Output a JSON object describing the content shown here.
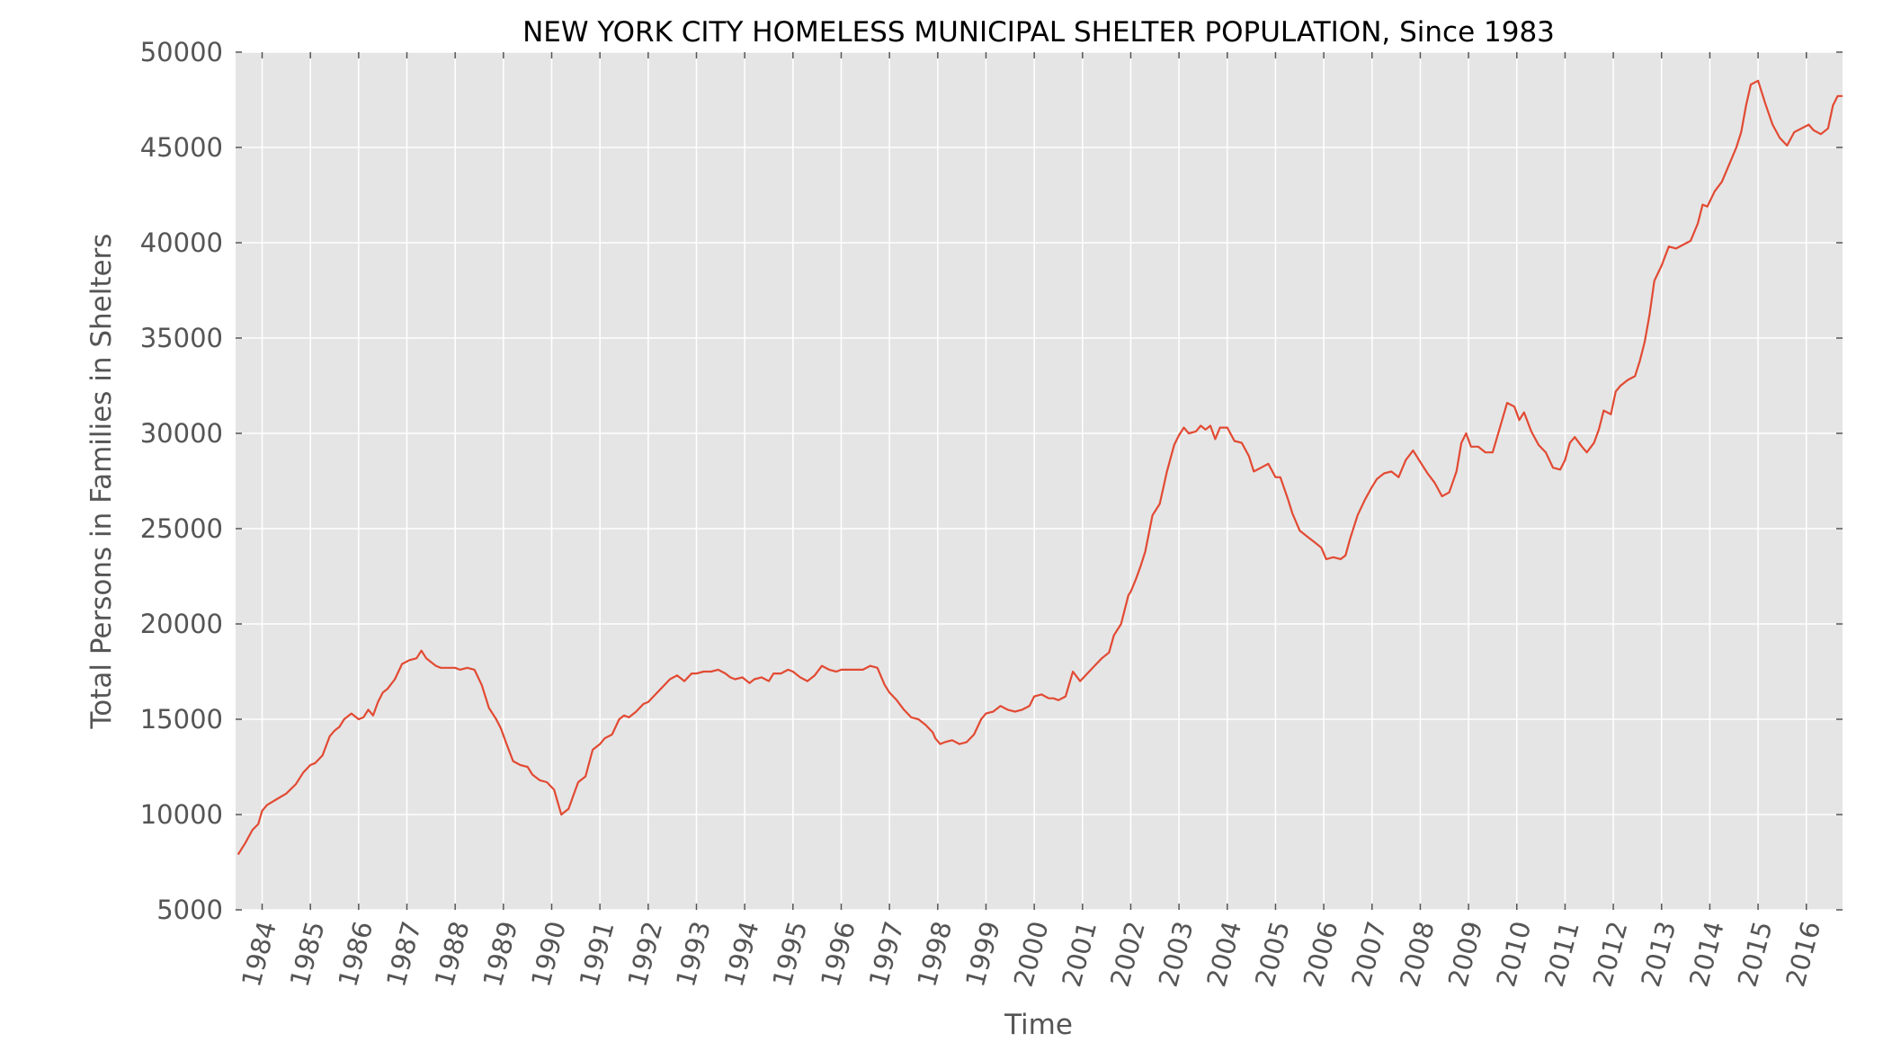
{
  "chart_data": {
    "type": "line",
    "title": "NEW YORK CITY HOMELESS MUNICIPAL SHELTER POPULATION, Since 1983",
    "xlabel": "Time",
    "ylabel": "Total Persons in Families in Shelters",
    "xlim": [
      1983.45,
      2016.75
    ],
    "ylim": [
      5000,
      50000
    ],
    "yticks": [
      "5000",
      "10000",
      "15000",
      "20000",
      "25000",
      "30000",
      "35000",
      "40000",
      "45000",
      "50000"
    ],
    "xticks": [
      "1984",
      "1985",
      "1986",
      "1987",
      "1988",
      "1989",
      "1990",
      "1991",
      "1992",
      "1993",
      "1994",
      "1995",
      "1996",
      "1997",
      "1998",
      "1999",
      "2000",
      "2001",
      "2002",
      "2003",
      "2004",
      "2005",
      "2006",
      "2007",
      "2008",
      "2009",
      "2010",
      "2011",
      "2012",
      "2013",
      "2014",
      "2015",
      "2016"
    ],
    "grid": true,
    "background": "#e5e5e5",
    "line_color": "#e24a33",
    "series": [
      {
        "x": [
          1983.5,
          1983.65,
          1983.8,
          1983.92,
          1984.0,
          1984.1,
          1984.3,
          1984.5,
          1984.7,
          1984.85,
          1985.0,
          1985.1,
          1985.25,
          1985.4,
          1985.5,
          1985.6,
          1985.7,
          1985.85,
          1986.0,
          1986.1,
          1986.2,
          1986.3,
          1986.4,
          1986.5,
          1986.6,
          1986.75,
          1986.9,
          1987.05,
          1987.2,
          1987.3,
          1987.4,
          1987.5,
          1987.6,
          1987.7,
          1987.85,
          1988.0,
          1988.1,
          1988.25,
          1988.4,
          1988.55,
          1988.7,
          1988.85,
          1988.95,
          1989.05,
          1989.2,
          1989.35,
          1989.5,
          1989.6,
          1989.75,
          1989.9,
          1990.05,
          1990.2,
          1990.35,
          1990.45,
          1990.55,
          1990.7,
          1990.85,
          1991.0,
          1991.1,
          1991.25,
          1991.4,
          1991.5,
          1991.6,
          1991.75,
          1991.9,
          1992.0,
          1992.15,
          1992.3,
          1992.45,
          1992.6,
          1992.75,
          1992.9,
          1993.0,
          1993.15,
          1993.3,
          1993.45,
          1993.6,
          1993.7,
          1993.8,
          1993.95,
          1994.1,
          1994.2,
          1994.35,
          1994.5,
          1994.6,
          1994.75,
          1994.9,
          1995.0,
          1995.15,
          1995.3,
          1995.45,
          1995.6,
          1995.75,
          1995.9,
          1996.0,
          1996.15,
          1996.3,
          1996.45,
          1996.6,
          1996.75,
          1996.9,
          1997.0,
          1997.15,
          1997.3,
          1997.45,
          1997.6,
          1997.75,
          1997.9,
          1997.95,
          1998.05,
          1998.15,
          1998.3,
          1998.45,
          1998.6,
          1998.75,
          1998.9,
          1999.0,
          1999.15,
          1999.3,
          1999.45,
          1999.6,
          1999.75,
          1999.9,
          2000.0,
          2000.15,
          2000.3,
          2000.4,
          2000.5,
          2000.65,
          2000.8,
          2000.95,
          2001.1,
          2001.25,
          2001.4,
          2001.55,
          2001.65,
          2001.8,
          2001.95,
          2002.0,
          2002.1,
          2002.2,
          2002.3,
          2002.45,
          2002.6,
          2002.75,
          2002.9,
          2003.0,
          2003.1,
          2003.2,
          2003.35,
          2003.45,
          2003.55,
          2003.65,
          2003.75,
          2003.85,
          2004.0,
          2004.15,
          2004.3,
          2004.45,
          2004.55,
          2004.7,
          2004.85,
          2005.0,
          2005.1,
          2005.25,
          2005.35,
          2005.5,
          2005.65,
          2005.8,
          2005.95,
          2006.05,
          2006.2,
          2006.35,
          2006.45,
          2006.55,
          2006.7,
          2006.85,
          2007.0,
          2007.1,
          2007.25,
          2007.4,
          2007.55,
          2007.7,
          2007.85,
          2008.0,
          2008.15,
          2008.3,
          2008.45,
          2008.6,
          2008.75,
          2008.85,
          2008.95,
          2009.05,
          2009.2,
          2009.35,
          2009.5,
          2009.65,
          2009.8,
          2009.95,
          2010.05,
          2010.15,
          2010.3,
          2010.45,
          2010.6,
          2010.75,
          2010.9,
          2011.0,
          2011.1,
          2011.2,
          2011.35,
          2011.45,
          2011.6,
          2011.7,
          2011.8,
          2011.95,
          2012.05,
          2012.15,
          2012.3,
          2012.45,
          2012.55,
          2012.65,
          2012.75,
          2012.85,
          2013.0,
          2013.15,
          2013.3,
          2013.45,
          2013.6,
          2013.75,
          2013.85,
          2013.95,
          2014.1,
          2014.25,
          2014.4,
          2014.55,
          2014.65,
          2014.75,
          2014.85,
          2015.0,
          2015.15,
          2015.3,
          2015.45,
          2015.6,
          2015.75,
          2015.9,
          2016.05,
          2016.15,
          2016.3,
          2016.45,
          2016.55,
          2016.65,
          2016.75
        ],
        "y": [
          7900,
          8500,
          9200,
          9500,
          10200,
          10500,
          10800,
          11100,
          11600,
          12200,
          12600,
          12700,
          13100,
          14100,
          14400,
          14600,
          15000,
          15300,
          15000,
          15100,
          15500,
          15200,
          15900,
          16400,
          16600,
          17100,
          17900,
          18100,
          18200,
          18600,
          18200,
          18000,
          17800,
          17700,
          17700,
          17700,
          17600,
          17700,
          17600,
          16800,
          15600,
          15000,
          14500,
          13800,
          12800,
          12600,
          12500,
          12100,
          11800,
          11700,
          11300,
          10000,
          10300,
          11000,
          11700,
          12000,
          13400,
          13700,
          14000,
          14200,
          15000,
          15200,
          15100,
          15400,
          15800,
          15900,
          16300,
          16700,
          17100,
          17300,
          17000,
          17400,
          17400,
          17500,
          17500,
          17600,
          17400,
          17200,
          17100,
          17200,
          16900,
          17100,
          17200,
          17000,
          17400,
          17400,
          17600,
          17500,
          17200,
          17000,
          17300,
          17800,
          17600,
          17500,
          17600,
          17600,
          17600,
          17600,
          17800,
          17700,
          16800,
          16400,
          16000,
          15500,
          15100,
          15000,
          14700,
          14300,
          14000,
          13700,
          13800,
          13900,
          13700,
          13800,
          14200,
          15000,
          15300,
          15400,
          15700,
          15500,
          15400,
          15500,
          15700,
          16200,
          16300,
          16100,
          16100,
          16000,
          16200,
          17500,
          17000,
          17400,
          17800,
          18200,
          18500,
          19400,
          20000,
          21500,
          21700,
          22300,
          23000,
          23800,
          25700,
          26300,
          28000,
          29400,
          29900,
          30300,
          30000,
          30100,
          30400,
          30200,
          30400,
          29700,
          30300,
          30300,
          29600,
          29500,
          28800,
          28000,
          28200,
          28400,
          27700,
          27700,
          26600,
          25800,
          24900,
          24600,
          24300,
          24000,
          23400,
          23500,
          23400,
          23600,
          24500,
          25700,
          26500,
          27200,
          27600,
          27900,
          28000,
          27700,
          28600,
          29100,
          28500,
          27900,
          27400,
          26700,
          26900,
          28000,
          29500,
          30000,
          29300,
          29300,
          29000,
          29000,
          30300,
          31600,
          31400,
          30700,
          31100,
          30100,
          29400,
          29000,
          28200,
          28100,
          28600,
          29500,
          29800,
          29300,
          29000,
          29500,
          30200,
          31200,
          31000,
          32200,
          32500,
          32800,
          33000,
          33800,
          34800,
          36200,
          38000,
          38800,
          39800,
          39700,
          39900,
          40100,
          41000,
          42000,
          41900,
          42700,
          43200,
          44100,
          45000,
          45800,
          47200,
          48300,
          48500,
          47300,
          46200,
          45500,
          45100,
          45800,
          46000,
          46200,
          45900,
          45700,
          46000,
          47200,
          47700,
          47700
        ]
      }
    ]
  }
}
